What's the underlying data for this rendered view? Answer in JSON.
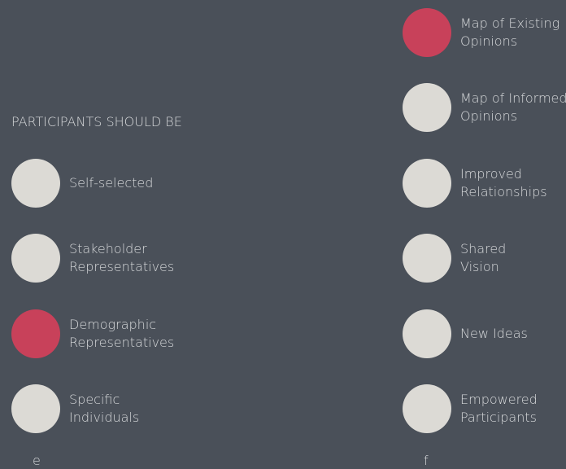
{
  "left": {
    "heading": "PARTICIPANTS SHOULD BE",
    "caption": "e",
    "options": [
      {
        "lines": [
          "Self-selected"
        ],
        "selected": false
      },
      {
        "lines": [
          "Stakeholder",
          "Representatives"
        ],
        "selected": false
      },
      {
        "lines": [
          "Demographic",
          "Representatives"
        ],
        "selected": true
      },
      {
        "lines": [
          "Specific",
          "Individuals"
        ],
        "selected": false
      }
    ]
  },
  "right": {
    "caption": "f",
    "options": [
      {
        "lines": [
          "Map of Existing",
          "Opinions"
        ],
        "selected": true
      },
      {
        "lines": [
          "Map of Informed",
          "Opinions"
        ],
        "selected": false
      },
      {
        "lines": [
          "Improved",
          "Relationships"
        ],
        "selected": false
      },
      {
        "lines": [
          "Shared",
          "Vision"
        ],
        "selected": false
      },
      {
        "lines": [
          "New Ideas"
        ],
        "selected": false
      },
      {
        "lines": [
          "Empowered",
          "Participants"
        ],
        "selected": false
      }
    ]
  },
  "colors": {
    "background": "#4a5059",
    "option": "#dcdad5",
    "selected": "#c8415a",
    "text": "#d6d8da"
  }
}
